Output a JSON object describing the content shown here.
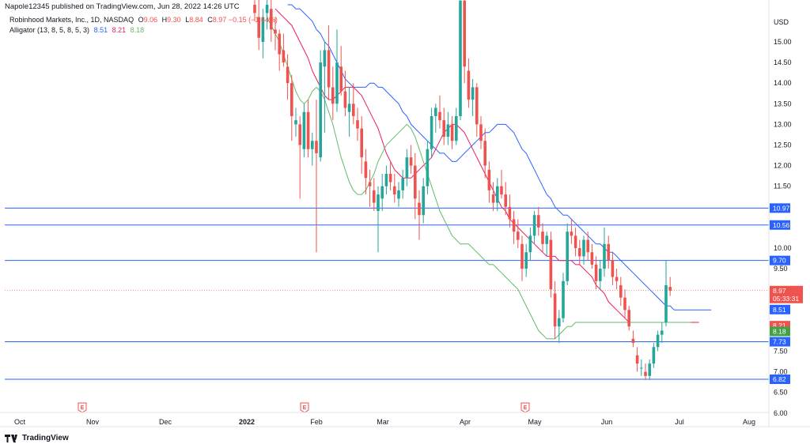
{
  "header": {
    "publish_text": "Napole12345 published on TradingView.com, Jun 28, 2022 14:26 UTC",
    "symbol_text": "Robinhood Markets, Inc., 1D, NASDAQ",
    "ohlc": {
      "o_label": "O",
      "o_value": "9.06",
      "h_label": "H",
      "h_value": "9.30",
      "l_label": "L",
      "l_value": "8.84",
      "c_label": "C",
      "c_value": "8.97",
      "change": "−0.15 (−1.64%)"
    },
    "indicator": {
      "label": "Alligator (13, 8, 5, 8, 5, 3)",
      "jaw": "8.51",
      "teeth": "8.21",
      "lips": "8.18"
    }
  },
  "footer": {
    "brand": "TradingView"
  },
  "colors": {
    "up": "#26a69a",
    "down": "#ef5350",
    "jaw": "#2962ff",
    "teeth": "#e91e63",
    "lips": "#66bb6a",
    "hline": "#2962ff",
    "last_price": "#ef5350"
  },
  "chart_data": {
    "type": "candlestick",
    "title": "Robinhood Markets, Inc., 1D, NASDAQ",
    "currency_label": "USD",
    "ylim": [
      6.0,
      16.2
    ],
    "y_ticks": [
      "15.00",
      "14.50",
      "14.00",
      "13.50",
      "13.00",
      "12.50",
      "12.00",
      "11.50",
      "10.00",
      "9.50",
      "7.50",
      "7.00",
      "6.50",
      "6.00"
    ],
    "x_ticks": [
      "Oct",
      "Nov",
      "Dec",
      "2022",
      "Feb",
      "Mar",
      "Apr",
      "May",
      "Jun",
      "Jul",
      "Aug"
    ],
    "x_tick_positions": [
      25,
      117,
      209,
      312,
      400,
      484,
      588,
      676,
      767,
      859,
      947
    ],
    "earnings_markers": [
      {
        "label": "E",
        "date": "2021-10-26"
      },
      {
        "label": "E",
        "date": "2022-01-27"
      },
      {
        "label": "E",
        "date": "2022-04-28"
      }
    ],
    "horizontal_lines": [
      {
        "label": "10.97",
        "price": 10.97
      },
      {
        "label": "10.56",
        "price": 10.56
      },
      {
        "label": "9.70",
        "price": 9.7
      },
      {
        "label": "7.73",
        "price": 7.73
      },
      {
        "label": "6.82",
        "price": 6.82
      }
    ],
    "last_price": {
      "label": "8.97",
      "price": 8.97,
      "countdown": "05:33:31"
    },
    "indicator_tags": [
      {
        "label": "8.51",
        "price": 8.51,
        "series": "jaw"
      },
      {
        "label": "8.21",
        "price": 8.21,
        "series": "teeth"
      },
      {
        "label": "8.18",
        "price": 8.18,
        "series": "lips"
      }
    ],
    "candles": [
      {
        "o": 15.9,
        "h": 16.4,
        "l": 15.5,
        "c": 15.7
      },
      {
        "o": 15.6,
        "h": 16.2,
        "l": 14.8,
        "c": 15.1
      },
      {
        "o": 15.0,
        "h": 15.8,
        "l": 14.6,
        "c": 15.6
      },
      {
        "o": 15.7,
        "h": 16.3,
        "l": 15.3,
        "c": 15.9
      },
      {
        "o": 15.8,
        "h": 16.1,
        "l": 15.0,
        "c": 15.3
      },
      {
        "o": 15.3,
        "h": 15.6,
        "l": 14.8,
        "c": 15.2
      },
      {
        "o": 15.2,
        "h": 15.3,
        "l": 14.3,
        "c": 14.7
      },
      {
        "o": 14.8,
        "h": 15.2,
        "l": 14.4,
        "c": 14.5
      },
      {
        "o": 14.4,
        "h": 14.7,
        "l": 13.6,
        "c": 14.0
      },
      {
        "o": 14.0,
        "h": 14.2,
        "l": 12.6,
        "c": 13.2
      },
      {
        "o": 13.0,
        "h": 13.4,
        "l": 12.7,
        "c": 13.1
      },
      {
        "o": 13.0,
        "h": 13.2,
        "l": 11.2,
        "c": 12.5
      },
      {
        "o": 12.4,
        "h": 13.5,
        "l": 12.2,
        "c": 13.3
      },
      {
        "o": 13.3,
        "h": 13.6,
        "l": 12.2,
        "c": 12.4
      },
      {
        "o": 12.4,
        "h": 12.8,
        "l": 12.0,
        "c": 12.6
      },
      {
        "o": 12.6,
        "h": 13.6,
        "l": 9.9,
        "c": 12.3
      },
      {
        "o": 12.2,
        "h": 14.8,
        "l": 12.1,
        "c": 14.5
      },
      {
        "o": 14.4,
        "h": 15.0,
        "l": 12.8,
        "c": 14.8
      },
      {
        "o": 14.8,
        "h": 15.4,
        "l": 13.6,
        "c": 13.9
      },
      {
        "o": 13.9,
        "h": 14.4,
        "l": 13.1,
        "c": 13.5
      },
      {
        "o": 13.5,
        "h": 15.3,
        "l": 13.3,
        "c": 14.5
      },
      {
        "o": 14.4,
        "h": 14.9,
        "l": 13.7,
        "c": 13.8
      },
      {
        "o": 13.8,
        "h": 14.3,
        "l": 13.2,
        "c": 13.4
      },
      {
        "o": 13.3,
        "h": 13.9,
        "l": 12.7,
        "c": 13.5
      },
      {
        "o": 13.5,
        "h": 14.0,
        "l": 13.0,
        "c": 13.2
      },
      {
        "o": 13.1,
        "h": 13.4,
        "l": 12.6,
        "c": 12.9
      },
      {
        "o": 12.9,
        "h": 13.2,
        "l": 11.8,
        "c": 12.2
      },
      {
        "o": 12.1,
        "h": 12.4,
        "l": 11.3,
        "c": 11.7
      },
      {
        "o": 11.6,
        "h": 11.9,
        "l": 11.0,
        "c": 11.5
      },
      {
        "o": 11.4,
        "h": 11.7,
        "l": 10.9,
        "c": 11.1
      },
      {
        "o": 10.9,
        "h": 11.5,
        "l": 9.9,
        "c": 11.3
      },
      {
        "o": 11.2,
        "h": 11.8,
        "l": 10.9,
        "c": 11.5
      },
      {
        "o": 11.5,
        "h": 12.0,
        "l": 11.3,
        "c": 11.8
      },
      {
        "o": 11.8,
        "h": 12.1,
        "l": 11.4,
        "c": 11.6
      },
      {
        "o": 11.5,
        "h": 11.8,
        "l": 11.1,
        "c": 11.3
      },
      {
        "o": 11.2,
        "h": 11.6,
        "l": 11.0,
        "c": 11.4
      },
      {
        "o": 11.4,
        "h": 11.9,
        "l": 11.2,
        "c": 11.7
      },
      {
        "o": 11.7,
        "h": 12.4,
        "l": 11.5,
        "c": 12.2
      },
      {
        "o": 12.2,
        "h": 12.5,
        "l": 11.8,
        "c": 12.0
      },
      {
        "o": 12.0,
        "h": 12.3,
        "l": 10.7,
        "c": 11.2
      },
      {
        "o": 11.1,
        "h": 11.4,
        "l": 10.2,
        "c": 10.8
      },
      {
        "o": 10.8,
        "h": 11.7,
        "l": 10.6,
        "c": 11.5
      },
      {
        "o": 11.5,
        "h": 12.6,
        "l": 11.3,
        "c": 12.4
      },
      {
        "o": 12.4,
        "h": 13.4,
        "l": 12.2,
        "c": 13.2
      },
      {
        "o": 13.2,
        "h": 13.5,
        "l": 12.8,
        "c": 13.4
      },
      {
        "o": 13.3,
        "h": 13.7,
        "l": 12.9,
        "c": 13.1
      },
      {
        "o": 13.1,
        "h": 13.4,
        "l": 12.5,
        "c": 12.7
      },
      {
        "o": 12.7,
        "h": 13.3,
        "l": 12.5,
        "c": 13.0
      },
      {
        "o": 13.0,
        "h": 13.2,
        "l": 12.4,
        "c": 12.6
      },
      {
        "o": 12.6,
        "h": 13.4,
        "l": 12.5,
        "c": 13.2
      },
      {
        "o": 13.2,
        "h": 16.4,
        "l": 13.1,
        "c": 16.0
      },
      {
        "o": 16.0,
        "h": 16.3,
        "l": 14.0,
        "c": 14.4
      },
      {
        "o": 14.3,
        "h": 14.6,
        "l": 13.4,
        "c": 13.6
      },
      {
        "o": 13.6,
        "h": 14.1,
        "l": 13.2,
        "c": 13.9
      },
      {
        "o": 13.9,
        "h": 14.0,
        "l": 12.7,
        "c": 13.0
      },
      {
        "o": 13.0,
        "h": 13.2,
        "l": 12.4,
        "c": 12.6
      },
      {
        "o": 12.6,
        "h": 12.9,
        "l": 11.7,
        "c": 12.0
      },
      {
        "o": 11.9,
        "h": 12.1,
        "l": 11.1,
        "c": 11.4
      },
      {
        "o": 11.3,
        "h": 11.6,
        "l": 10.9,
        "c": 11.1
      },
      {
        "o": 11.1,
        "h": 11.7,
        "l": 10.9,
        "c": 11.5
      },
      {
        "o": 11.5,
        "h": 11.9,
        "l": 11.2,
        "c": 11.3
      },
      {
        "o": 11.3,
        "h": 11.6,
        "l": 10.8,
        "c": 11.0
      },
      {
        "o": 11.0,
        "h": 11.3,
        "l": 10.5,
        "c": 10.7
      },
      {
        "o": 10.7,
        "h": 10.9,
        "l": 10.1,
        "c": 10.4
      },
      {
        "o": 10.4,
        "h": 10.7,
        "l": 10.0,
        "c": 10.2
      },
      {
        "o": 10.1,
        "h": 10.3,
        "l": 9.2,
        "c": 9.5
      },
      {
        "o": 9.5,
        "h": 10.1,
        "l": 9.3,
        "c": 9.9
      },
      {
        "o": 9.9,
        "h": 10.5,
        "l": 9.7,
        "c": 10.3
      },
      {
        "o": 10.3,
        "h": 10.9,
        "l": 10.1,
        "c": 10.8
      },
      {
        "o": 10.8,
        "h": 11.0,
        "l": 10.3,
        "c": 10.5
      },
      {
        "o": 10.4,
        "h": 10.6,
        "l": 9.9,
        "c": 10.1
      },
      {
        "o": 10.1,
        "h": 10.4,
        "l": 9.8,
        "c": 10.3
      },
      {
        "o": 10.2,
        "h": 10.4,
        "l": 8.8,
        "c": 9.0
      },
      {
        "o": 8.9,
        "h": 9.2,
        "l": 7.8,
        "c": 8.1
      },
      {
        "o": 8.1,
        "h": 8.5,
        "l": 7.7,
        "c": 8.3
      },
      {
        "o": 8.3,
        "h": 9.4,
        "l": 8.2,
        "c": 9.2
      },
      {
        "o": 9.2,
        "h": 10.6,
        "l": 9.1,
        "c": 10.4
      },
      {
        "o": 10.4,
        "h": 10.7,
        "l": 10.1,
        "c": 10.3
      },
      {
        "o": 10.3,
        "h": 10.5,
        "l": 9.8,
        "c": 10.0
      },
      {
        "o": 10.0,
        "h": 10.2,
        "l": 9.6,
        "c": 9.8
      },
      {
        "o": 9.8,
        "h": 10.3,
        "l": 9.6,
        "c": 10.2
      },
      {
        "o": 10.2,
        "h": 10.4,
        "l": 9.7,
        "c": 9.9
      },
      {
        "o": 9.9,
        "h": 10.1,
        "l": 9.5,
        "c": 9.6
      },
      {
        "o": 9.6,
        "h": 9.8,
        "l": 9.0,
        "c": 9.2
      },
      {
        "o": 9.2,
        "h": 9.7,
        "l": 9.0,
        "c": 9.5
      },
      {
        "o": 9.5,
        "h": 10.5,
        "l": 9.3,
        "c": 10.1
      },
      {
        "o": 10.1,
        "h": 10.3,
        "l": 9.5,
        "c": 9.7
      },
      {
        "o": 9.7,
        "h": 9.9,
        "l": 9.1,
        "c": 9.3
      },
      {
        "o": 9.3,
        "h": 9.5,
        "l": 9.0,
        "c": 9.2
      },
      {
        "o": 9.1,
        "h": 9.3,
        "l": 8.6,
        "c": 8.8
      },
      {
        "o": 8.8,
        "h": 9.0,
        "l": 8.3,
        "c": 8.5
      },
      {
        "o": 8.5,
        "h": 8.6,
        "l": 8.0,
        "c": 8.1
      },
      {
        "o": 7.8,
        "h": 8.0,
        "l": 7.6,
        "c": 7.7
      },
      {
        "o": 7.4,
        "h": 7.6,
        "l": 7.0,
        "c": 7.2
      },
      {
        "o": 7.1,
        "h": 7.3,
        "l": 6.9,
        "c": 7.1
      },
      {
        "o": 7.0,
        "h": 7.2,
        "l": 6.8,
        "c": 6.9
      },
      {
        "o": 6.9,
        "h": 7.3,
        "l": 6.8,
        "c": 7.2
      },
      {
        "o": 7.2,
        "h": 7.7,
        "l": 7.1,
        "c": 7.6
      },
      {
        "o": 7.6,
        "h": 8.0,
        "l": 7.5,
        "c": 7.9
      },
      {
        "o": 7.9,
        "h": 8.2,
        "l": 7.7,
        "c": 8.0
      },
      {
        "o": 8.2,
        "h": 9.7,
        "l": 8.1,
        "c": 9.1
      },
      {
        "o": 9.06,
        "h": 9.3,
        "l": 8.84,
        "c": 8.97
      }
    ],
    "jaw": [
      15.9,
      15.9,
      15.8,
      15.8,
      15.7,
      15.6,
      15.5,
      15.3,
      15.2,
      15.0,
      14.9,
      14.7,
      14.5,
      14.3,
      14.1,
      14.0,
      13.9,
      13.9,
      13.9,
      13.9,
      14.0,
      14.0,
      13.9,
      13.9,
      13.8,
      13.7,
      13.6,
      13.5,
      13.3,
      13.2,
      13.0,
      12.9,
      12.8,
      12.7,
      12.6,
      12.5,
      12.4,
      12.3,
      12.3,
      12.2,
      12.1,
      12.1,
      12.2,
      12.3,
      12.4,
      12.5,
      12.6,
      12.7,
      12.8,
      12.8,
      12.9,
      13.0,
      13.0,
      13.0,
      12.9,
      12.8,
      12.6,
      12.4,
      12.3,
      12.1,
      11.9,
      11.7,
      11.5,
      11.3,
      11.2,
      11.0,
      10.9,
      10.8,
      10.8,
      10.7,
      10.6,
      10.5,
      10.4,
      10.3,
      10.2,
      10.1,
      10.1,
      10.0,
      9.9,
      9.9,
      9.8,
      9.7,
      9.6,
      9.5,
      9.4,
      9.3,
      9.2,
      9.1,
      9.0,
      8.9,
      8.8,
      8.7,
      8.6,
      8.6,
      8.5,
      8.5,
      8.5,
      8.5,
      8.5,
      8.5,
      8.5,
      8.5,
      8.5,
      8.5
    ],
    "teeth": [
      15.8,
      15.7,
      15.6,
      15.5,
      15.4,
      15.2,
      15.0,
      14.8,
      14.6,
      14.3,
      14.1,
      13.9,
      13.7,
      13.6,
      13.6,
      13.7,
      13.8,
      13.9,
      13.9,
      13.9,
      13.8,
      13.7,
      13.5,
      13.3,
      13.1,
      12.9,
      12.6,
      12.3,
      12.1,
      11.9,
      11.8,
      11.7,
      11.7,
      11.7,
      11.8,
      11.9,
      12.0,
      12.1,
      12.2,
      12.4,
      12.6,
      12.8,
      12.9,
      13.0,
      13.0,
      12.9,
      12.8,
      12.6,
      12.4,
      12.2,
      12.0,
      11.8,
      11.6,
      11.4,
      11.2,
      11.0,
      10.9,
      10.7,
      10.6,
      10.5,
      10.4,
      10.3,
      10.2,
      10.1,
      10.0,
      9.9,
      9.8,
      9.8,
      9.8,
      9.7,
      9.7,
      9.7,
      9.7,
      9.6,
      9.6,
      9.5,
      9.4,
      9.3,
      9.1,
      9.0,
      8.9,
      8.7,
      8.6,
      8.5,
      8.4,
      8.3,
      8.2,
      8.2,
      8.2,
      8.2,
      8.2,
      8.2,
      8.2,
      8.2,
      8.2,
      8.2,
      8.2,
      8.2,
      8.2,
      8.2,
      8.2,
      8.2,
      8.2,
      8.2
    ],
    "lips": [
      15.6,
      15.4,
      15.2,
      15.0,
      14.7,
      14.4,
      14.1,
      13.8,
      13.6,
      13.5,
      13.6,
      13.8,
      13.9,
      13.8,
      13.6,
      13.3,
      13.0,
      12.6,
      12.2,
      11.9,
      11.6,
      11.4,
      11.3,
      11.3,
      11.4,
      11.6,
      11.8,
      12.1,
      12.3,
      12.5,
      12.6,
      12.7,
      12.8,
      12.9,
      13.0,
      12.9,
      12.7,
      12.4,
      12.1,
      11.8,
      11.5,
      11.2,
      10.9,
      10.7,
      10.5,
      10.3,
      10.2,
      10.1,
      10.1,
      10.1,
      10.0,
      9.9,
      9.8,
      9.7,
      9.6,
      9.6,
      9.5,
      9.4,
      9.3,
      9.2,
      9.1,
      9.0,
      8.8,
      8.6,
      8.4,
      8.2,
      8.0,
      7.9,
      7.8,
      7.8,
      7.8,
      7.9,
      8.0,
      8.1,
      8.1,
      8.2,
      8.2,
      8.2,
      8.2,
      8.2,
      8.2,
      8.2,
      8.2,
      8.2,
      8.2,
      8.2,
      8.2,
      8.2,
      8.2,
      8.2,
      8.2,
      8.2,
      8.2,
      8.2,
      8.2,
      8.2,
      8.2,
      8.2,
      8.2,
      8.2,
      8.2,
      8.2,
      8.2,
      8.2
    ]
  }
}
